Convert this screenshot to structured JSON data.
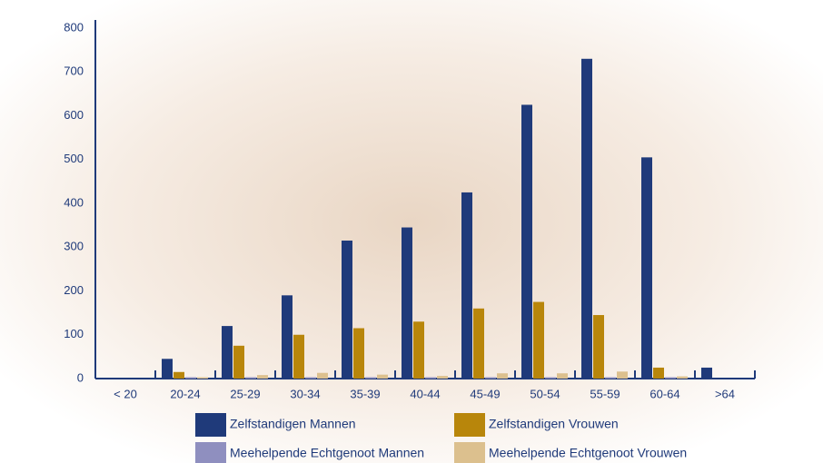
{
  "chart_data": {
    "type": "bar",
    "categories": [
      "< 20",
      "20-24",
      "25-29",
      "30-34",
      "35-39",
      "40-44",
      "45-49",
      "50-54",
      "55-59",
      "60-64",
      ">64"
    ],
    "series": [
      {
        "name": "Zelfstandigen Mannen",
        "color": "#1f3a7a",
        "values": [
          0,
          45,
          120,
          190,
          315,
          345,
          425,
          625,
          730,
          505,
          25
        ]
      },
      {
        "name": "Zelfstandigen Vrouwen",
        "color": "#b8860b",
        "values": [
          0,
          15,
          75,
          100,
          115,
          130,
          160,
          175,
          145,
          25,
          0
        ]
      },
      {
        "name": "Meehelpende Echtgenoot Mannen",
        "color": "#8f8fbf",
        "values": [
          0,
          3,
          3,
          3,
          3,
          3,
          3,
          3,
          3,
          3,
          0
        ]
      },
      {
        "name": "Meehelpende Echtgenoot Vrouwen",
        "color": "#dcc08e",
        "values": [
          0,
          3,
          8,
          13,
          9,
          6,
          12,
          12,
          16,
          5,
          0
        ]
      }
    ],
    "ylim": [
      0,
      800
    ],
    "yticks": [
      0,
      100,
      200,
      300,
      400,
      500,
      600,
      700,
      800
    ],
    "grid": false
  }
}
